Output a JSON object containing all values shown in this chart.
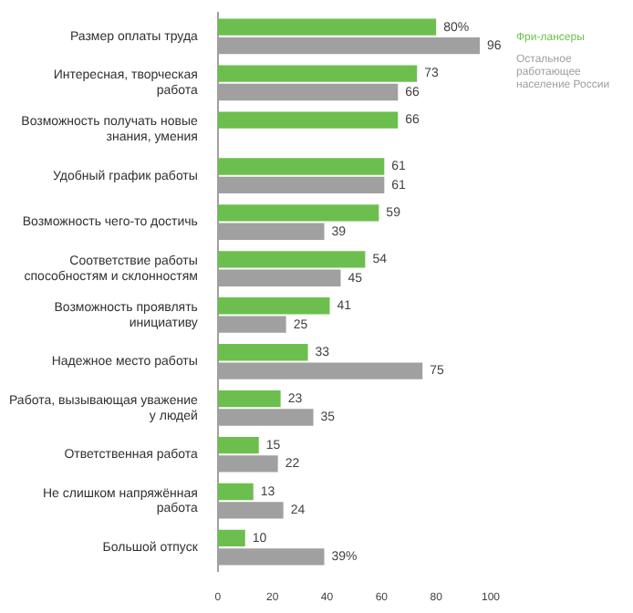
{
  "chart_data": {
    "type": "bar",
    "orientation": "horizontal",
    "categories": [
      "Размер оплаты труда",
      "Интересная, творческая работа",
      "Возможность получать новые знания, умения",
      "Удобный график работы",
      "Возможность чего-то достичь",
      "Соответствие работы способностям и склонностям",
      "Возможность проявлять инициативу",
      "Надежное место работы",
      "Работа, вызывающая уважение у людей",
      "Ответственная работа",
      "Не слишком напряжённая работа",
      "Большой отпуск"
    ],
    "series": [
      {
        "name": "Фри-лансеры",
        "color": "#6cbf4e",
        "values": [
          80,
          73,
          66,
          61,
          59,
          54,
          41,
          33,
          23,
          15,
          13,
          10
        ],
        "value_labels": [
          "80%",
          "73",
          "66",
          "61",
          "59",
          "54",
          "41",
          "33",
          "23",
          "15",
          "13",
          "10"
        ]
      },
      {
        "name": "Остальное работающее население России",
        "color": "#a0a0a0",
        "values": [
          96,
          66,
          null,
          61,
          39,
          45,
          25,
          75,
          35,
          22,
          24,
          39
        ],
        "value_labels": [
          "96",
          "66",
          null,
          "61",
          "39",
          "45",
          "25",
          "75",
          "35",
          "22",
          "24",
          "39%"
        ]
      }
    ],
    "xlim": [
      0,
      100
    ],
    "xticks": [
      0,
      20,
      40,
      60,
      80,
      100
    ],
    "grid": false,
    "legend": "top right"
  }
}
